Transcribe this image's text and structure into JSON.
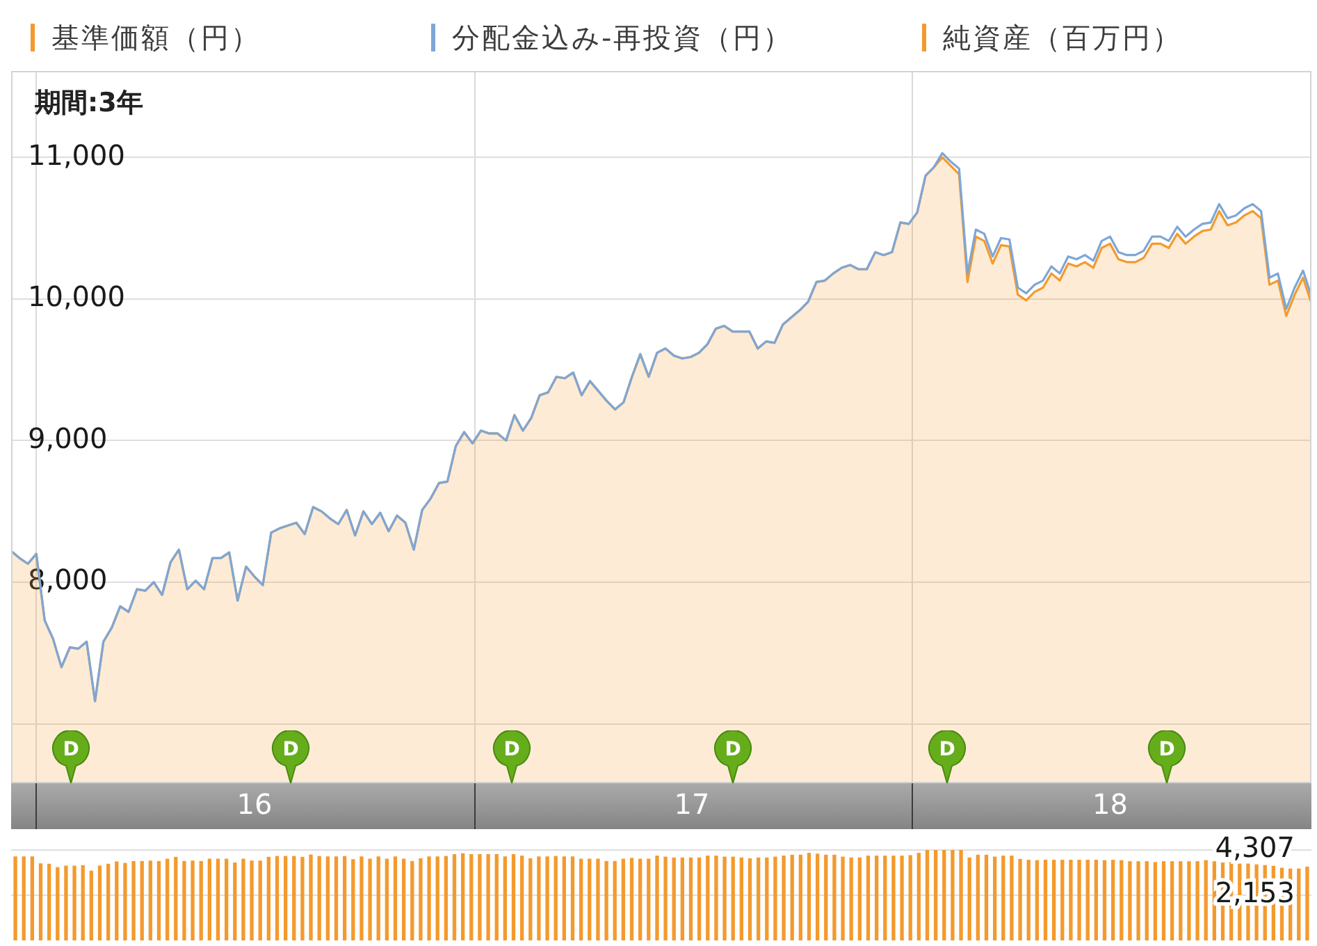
{
  "chart_data": [
    {
      "type": "area",
      "subtitle": "期間:3年",
      "annotations": [
        "D",
        "D",
        "D",
        "D",
        "D",
        "D"
      ],
      "x": [
        "2015-12-11",
        "2015-12-18",
        "2015-12-25",
        "2016-01-01",
        "2016-01-08",
        "2016-01-15",
        "2016-01-22",
        "2016-01-29",
        "2016-02-05",
        "2016-02-12",
        "2016-02-19",
        "2016-02-26",
        "2016-03-04",
        "2016-03-11",
        "2016-03-18",
        "2016-03-25",
        "2016-04-01",
        "2016-04-08",
        "2016-04-15",
        "2016-04-22",
        "2016-04-29",
        "2016-05-06",
        "2016-05-13",
        "2016-05-20",
        "2016-05-27",
        "2016-06-03",
        "2016-06-10",
        "2016-06-17",
        "2016-06-24",
        "2016-07-01",
        "2016-07-08",
        "2016-07-15",
        "2016-07-22",
        "2016-07-29",
        "2016-08-05",
        "2016-08-12",
        "2016-08-19",
        "2016-08-26",
        "2016-09-02",
        "2016-09-09",
        "2016-09-16",
        "2016-09-23",
        "2016-09-30",
        "2016-10-07",
        "2016-10-14",
        "2016-10-21",
        "2016-10-28",
        "2016-11-04",
        "2016-11-11",
        "2016-11-18",
        "2016-11-25",
        "2016-12-02",
        "2016-12-09",
        "2016-12-16",
        "2016-12-23",
        "2016-12-30",
        "2017-01-06",
        "2017-01-13",
        "2017-01-20",
        "2017-01-27",
        "2017-02-03",
        "2017-02-10",
        "2017-02-17",
        "2017-02-24",
        "2017-03-03",
        "2017-03-10",
        "2017-03-17",
        "2017-03-24",
        "2017-03-31",
        "2017-04-07",
        "2017-04-14",
        "2017-04-21",
        "2017-04-28",
        "2017-05-05",
        "2017-05-12",
        "2017-05-19",
        "2017-05-26",
        "2017-06-02",
        "2017-06-09",
        "2017-06-16",
        "2017-06-23",
        "2017-06-30",
        "2017-07-07",
        "2017-07-14",
        "2017-07-21",
        "2017-07-28",
        "2017-08-04",
        "2017-08-11",
        "2017-08-18",
        "2017-08-25",
        "2017-09-01",
        "2017-09-08",
        "2017-09-15",
        "2017-09-22",
        "2017-09-29",
        "2017-10-06",
        "2017-10-13",
        "2017-10-20",
        "2017-10-27",
        "2017-11-03",
        "2017-11-10",
        "2017-11-17",
        "2017-11-24",
        "2017-12-01",
        "2017-12-08",
        "2017-12-15",
        "2017-12-22",
        "2017-12-29",
        "2018-01-05",
        "2018-01-12",
        "2018-01-19",
        "2018-01-26",
        "2018-02-02",
        "2018-02-09",
        "2018-02-16",
        "2018-02-23",
        "2018-03-02",
        "2018-03-09",
        "2018-03-16",
        "2018-03-23",
        "2018-03-30",
        "2018-04-06",
        "2018-04-13",
        "2018-04-20",
        "2018-04-27",
        "2018-05-04",
        "2018-05-11",
        "2018-05-18",
        "2018-05-25",
        "2018-06-01",
        "2018-06-08",
        "2018-06-15",
        "2018-06-22",
        "2018-06-29",
        "2018-07-06",
        "2018-07-13",
        "2018-07-20",
        "2018-07-27",
        "2018-08-03",
        "2018-08-10",
        "2018-08-17",
        "2018-08-24",
        "2018-08-31",
        "2018-09-07",
        "2018-09-14",
        "2018-09-21",
        "2018-09-28",
        "2018-10-05",
        "2018-10-12",
        "2018-10-19",
        "2018-10-26",
        "2018-11-02",
        "2018-11-09",
        "2018-11-16",
        "2018-11-23",
        "2018-11-30"
      ],
      "series": [
        {
          "name": "基準価額（円）",
          "type": "area",
          "color": "#f39a2e",
          "values": [
            8220,
            8170,
            8130,
            8200,
            7730,
            7600,
            7400,
            7540,
            7530,
            7580,
            7160,
            7580,
            7680,
            7830,
            7790,
            7950,
            7940,
            8000,
            7910,
            8140,
            8230,
            7950,
            8010,
            7950,
            8170,
            8170,
            8210,
            7870,
            8110,
            8040,
            7980,
            8350,
            8380,
            8400,
            8420,
            8340,
            8530,
            8500,
            8450,
            8410,
            8510,
            8330,
            8500,
            8410,
            8490,
            8360,
            8470,
            8420,
            8230,
            8510,
            8590,
            8700,
            8710,
            8960,
            9060,
            8980,
            9070,
            9050,
            9050,
            9000,
            9180,
            9070,
            9160,
            9320,
            9340,
            9450,
            9440,
            9480,
            9320,
            9420,
            9350,
            9280,
            9220,
            9270,
            9450,
            9610,
            9450,
            9620,
            9650,
            9600,
            9580,
            9590,
            9620,
            9680,
            9790,
            9810,
            9770,
            9770,
            9770,
            9650,
            9700,
            9690,
            9820,
            9870,
            9920,
            9980,
            10120,
            10130,
            10180,
            10220,
            10240,
            10210,
            10210,
            10330,
            10310,
            10330,
            10540,
            10530,
            10610,
            10870,
            10930,
            11000,
            10940,
            10880,
            10120,
            10440,
            10410,
            10250,
            10380,
            10370,
            10030,
            9990,
            10050,
            10080,
            10180,
            10130,
            10250,
            10230,
            10260,
            10220,
            10360,
            10390,
            10280,
            10260,
            10260,
            10290,
            10390,
            10390,
            10360,
            10460,
            10390,
            10440,
            10480,
            10490,
            10620,
            10520,
            10540,
            10590,
            10620,
            10570,
            10100,
            10130,
            9880,
            10030,
            10150,
            9970
          ]
        },
        {
          "name": "分配金込み-再投資（円）",
          "type": "line",
          "color": "#7ea6d6",
          "values": [
            8220,
            8170,
            8130,
            8200,
            7730,
            7600,
            7400,
            7540,
            7530,
            7580,
            7160,
            7580,
            7680,
            7830,
            7790,
            7950,
            7940,
            8000,
            7910,
            8140,
            8230,
            7950,
            8010,
            7950,
            8170,
            8170,
            8210,
            7870,
            8110,
            8040,
            7980,
            8350,
            8380,
            8400,
            8420,
            8340,
            8530,
            8500,
            8450,
            8410,
            8510,
            8330,
            8500,
            8410,
            8490,
            8360,
            8470,
            8420,
            8230,
            8510,
            8590,
            8700,
            8710,
            8960,
            9060,
            8980,
            9070,
            9050,
            9050,
            9000,
            9180,
            9070,
            9160,
            9320,
            9340,
            9450,
            9440,
            9480,
            9320,
            9420,
            9350,
            9280,
            9220,
            9270,
            9450,
            9610,
            9450,
            9620,
            9650,
            9600,
            9580,
            9590,
            9620,
            9680,
            9790,
            9810,
            9770,
            9770,
            9770,
            9650,
            9700,
            9690,
            9820,
            9870,
            9920,
            9980,
            10120,
            10130,
            10180,
            10220,
            10240,
            10210,
            10210,
            10330,
            10310,
            10330,
            10540,
            10530,
            10610,
            10870,
            10930,
            11030,
            10970,
            10920,
            10180,
            10490,
            10460,
            10300,
            10430,
            10420,
            10080,
            10040,
            10100,
            10130,
            10230,
            10180,
            10300,
            10280,
            10310,
            10270,
            10410,
            10440,
            10330,
            10310,
            10310,
            10340,
            10440,
            10440,
            10410,
            10510,
            10440,
            10490,
            10530,
            10540,
            10670,
            10570,
            10590,
            10640,
            10670,
            10620,
            10150,
            10180,
            9930,
            10080,
            10200,
            10020
          ]
        }
      ],
      "xlim": [
        "2015-12-11",
        "2018-11-30"
      ],
      "xticks": [
        {
          "value": "2016-01-01",
          "label": null
        },
        {
          "value": "2016-07-01",
          "label": "16"
        },
        {
          "value": "2017-01-01",
          "label": null
        },
        {
          "value": "2017-07-01",
          "label": "17"
        },
        {
          "value": "2018-01-01",
          "label": null
        },
        {
          "value": "2018-06-15",
          "label": "18"
        }
      ],
      "ylim": [
        6590,
        11610
      ],
      "yticks": [
        {
          "value": 7000,
          "label": null
        },
        {
          "value": 8000,
          "label": "8,000"
        },
        {
          "value": 9000,
          "label": "9,000"
        },
        {
          "value": 10000,
          "label": "10,000"
        },
        {
          "value": 11000,
          "label": "11,000"
        }
      ],
      "grid": true,
      "legend": "top"
    },
    {
      "type": "bar",
      "categories": [
        null,
        null,
        null,
        null,
        null,
        null,
        null,
        null,
        null,
        null,
        null,
        null,
        null,
        null,
        null,
        null,
        null,
        null,
        null,
        null,
        null,
        null,
        null,
        null,
        null,
        null,
        null,
        null,
        null,
        null,
        null,
        null,
        null,
        null,
        null,
        null,
        null,
        null,
        null,
        null,
        null,
        null,
        null,
        null,
        null,
        null,
        null,
        null,
        null,
        null,
        null,
        null,
        null,
        null,
        null,
        null,
        null,
        null,
        null,
        null,
        null,
        null,
        null,
        null,
        null,
        null,
        null,
        null,
        null,
        null,
        null,
        null,
        null,
        null,
        null,
        null,
        null,
        null,
        null,
        null,
        null,
        null,
        null,
        null,
        null,
        null,
        null,
        null,
        null,
        null,
        null,
        null,
        null,
        null,
        null,
        null,
        null,
        null,
        null,
        null,
        null,
        null,
        null,
        null,
        null,
        null,
        null,
        null,
        null,
        null,
        null,
        null,
        null,
        null,
        null,
        null,
        null,
        null,
        null,
        null,
        null,
        null,
        null,
        null,
        null,
        null,
        null,
        null,
        null,
        null,
        null,
        null,
        null,
        null,
        null,
        null,
        null,
        null,
        null,
        null,
        null,
        null,
        null,
        null,
        null,
        null,
        null,
        null,
        null,
        null,
        null,
        null,
        null,
        null
      ],
      "series": [
        {
          "name": "純資産（百万円）",
          "color": "#f39a2e",
          "values": [
            3980,
            3980,
            3980,
            3650,
            3630,
            3470,
            3540,
            3540,
            3560,
            3300,
            3540,
            3630,
            3740,
            3670,
            3760,
            3760,
            3780,
            3760,
            3870,
            3960,
            3760,
            3780,
            3760,
            3870,
            3870,
            3870,
            3690,
            3870,
            3780,
            3780,
            3960,
            4000,
            4000,
            4000,
            3960,
            4070,
            4000,
            3980,
            3980,
            4000,
            3850,
            3980,
            3870,
            3980,
            3870,
            3980,
            3870,
            3760,
            3890,
            3980,
            3980,
            4000,
            4090,
            4130,
            4090,
            4090,
            4090,
            4090,
            3980,
            4090,
            4020,
            3890,
            3980,
            3980,
            4000,
            3980,
            3980,
            3870,
            3870,
            3870,
            3760,
            3760,
            3870,
            3910,
            3870,
            3870,
            4020,
            3970,
            3930,
            3930,
            3930,
            3930,
            4020,
            4020,
            3970,
            3970,
            3930,
            3890,
            3930,
            3930,
            3970,
            4020,
            4060,
            4060,
            4150,
            4110,
            4060,
            4060,
            3970,
            3930,
            3930,
            4020,
            4020,
            4020,
            4020,
            4020,
            4040,
            4150,
            4290,
            4300,
            4290,
            4290,
            4290,
            3930,
            4060,
            4060,
            3970,
            4020,
            4020,
            3860,
            3820,
            3800,
            3820,
            3820,
            3820,
            3820,
            3820,
            3820,
            3820,
            3800,
            3820,
            3800,
            3750,
            3750,
            3750,
            3710,
            3750,
            3750,
            3750,
            3750,
            3750,
            3800,
            3750,
            3690,
            3710,
            3640,
            3640,
            3600,
            3570,
            3530,
            3440,
            3400,
            3400,
            3490
          ]
        }
      ],
      "ylim": [
        0,
        4307
      ],
      "yticks": [
        {
          "value": 2153,
          "label": "2,153"
        },
        {
          "value": 4307,
          "label": "4,307"
        }
      ],
      "tick_labels": "y",
      "grid": "y",
      "legend": "top"
    }
  ]
}
